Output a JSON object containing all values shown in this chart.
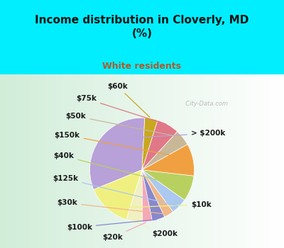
{
  "title": "Income distribution in Cloverly, MD\n(%)",
  "subtitle": "White residents",
  "title_color": "#111111",
  "subtitle_color": "#b05a2a",
  "background_cyan": "#00eeff",
  "background_chart": "#d8f0e0",
  "labels": [
    "> $200k",
    "$10k",
    "$200k",
    "$20k",
    "$100k",
    "$30k",
    "$125k",
    "$40k",
    "$150k",
    "$50k",
    "$75k",
    "$60k"
  ],
  "values": [
    32,
    14,
    5,
    3,
    4,
    3,
    5,
    8,
    10,
    5,
    7,
    4
  ],
  "colors": [
    "#b8a0d8",
    "#f0f080",
    "#f0f0c0",
    "#f4a8b8",
    "#8888cc",
    "#f0b888",
    "#aac8f0",
    "#b8d060",
    "#f0a040",
    "#c8b898",
    "#e07888",
    "#c8a820"
  ],
  "label_font_size": 7.5,
  "startangle": 87,
  "watermark": "City-Data.com"
}
